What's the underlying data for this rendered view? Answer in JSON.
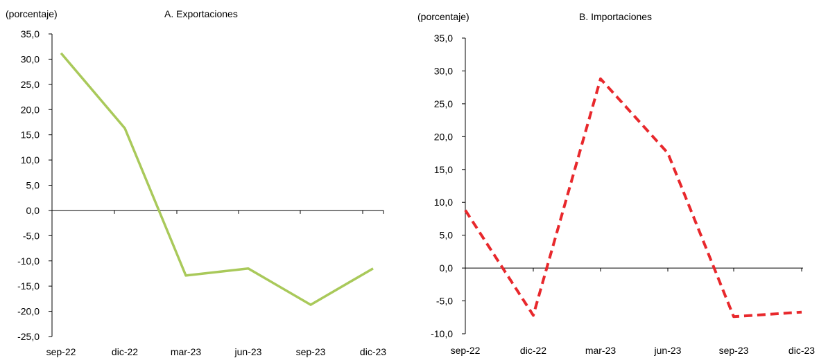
{
  "chart_data": [
    {
      "type": "line",
      "title": "A. Exportaciones",
      "ylabel": "(porcentaje)",
      "categories": [
        "sep-22",
        "dic-22",
        "mar-23",
        "jun-23",
        "sep-23",
        "dic-23"
      ],
      "yticks": [
        "35,0",
        "30,0",
        "25,0",
        "20,0",
        "15,0",
        "10,0",
        "5,0",
        "0,0",
        "-5,0",
        "-10,0",
        "-15,0",
        "-20,0",
        "-25,0"
      ],
      "ylim": [
        -25,
        35
      ],
      "series": [
        {
          "values": [
            31.2,
            16.3,
            -12.9,
            -11.5,
            -18.7,
            -11.5
          ],
          "color": "#a9c95a",
          "style": "solid"
        }
      ],
      "grid": false
    },
    {
      "type": "line",
      "title": "B. Importaciones",
      "ylabel": "(porcentaje)",
      "categories": [
        "sep-22",
        "dic-22",
        "mar-23",
        "jun-23",
        "sep-23",
        "dic-23"
      ],
      "yticks": [
        "35,0",
        "30,0",
        "25,0",
        "20,0",
        "15,0",
        "10,0",
        "5,0",
        "0,0",
        "-5,0",
        "-10,0"
      ],
      "ylim": [
        -10,
        35
      ],
      "series": [
        {
          "values": [
            8.8,
            -7.2,
            28.8,
            17.5,
            -7.4,
            -6.7
          ],
          "color": "#e8282c",
          "style": "dashed"
        }
      ],
      "grid": false
    }
  ]
}
